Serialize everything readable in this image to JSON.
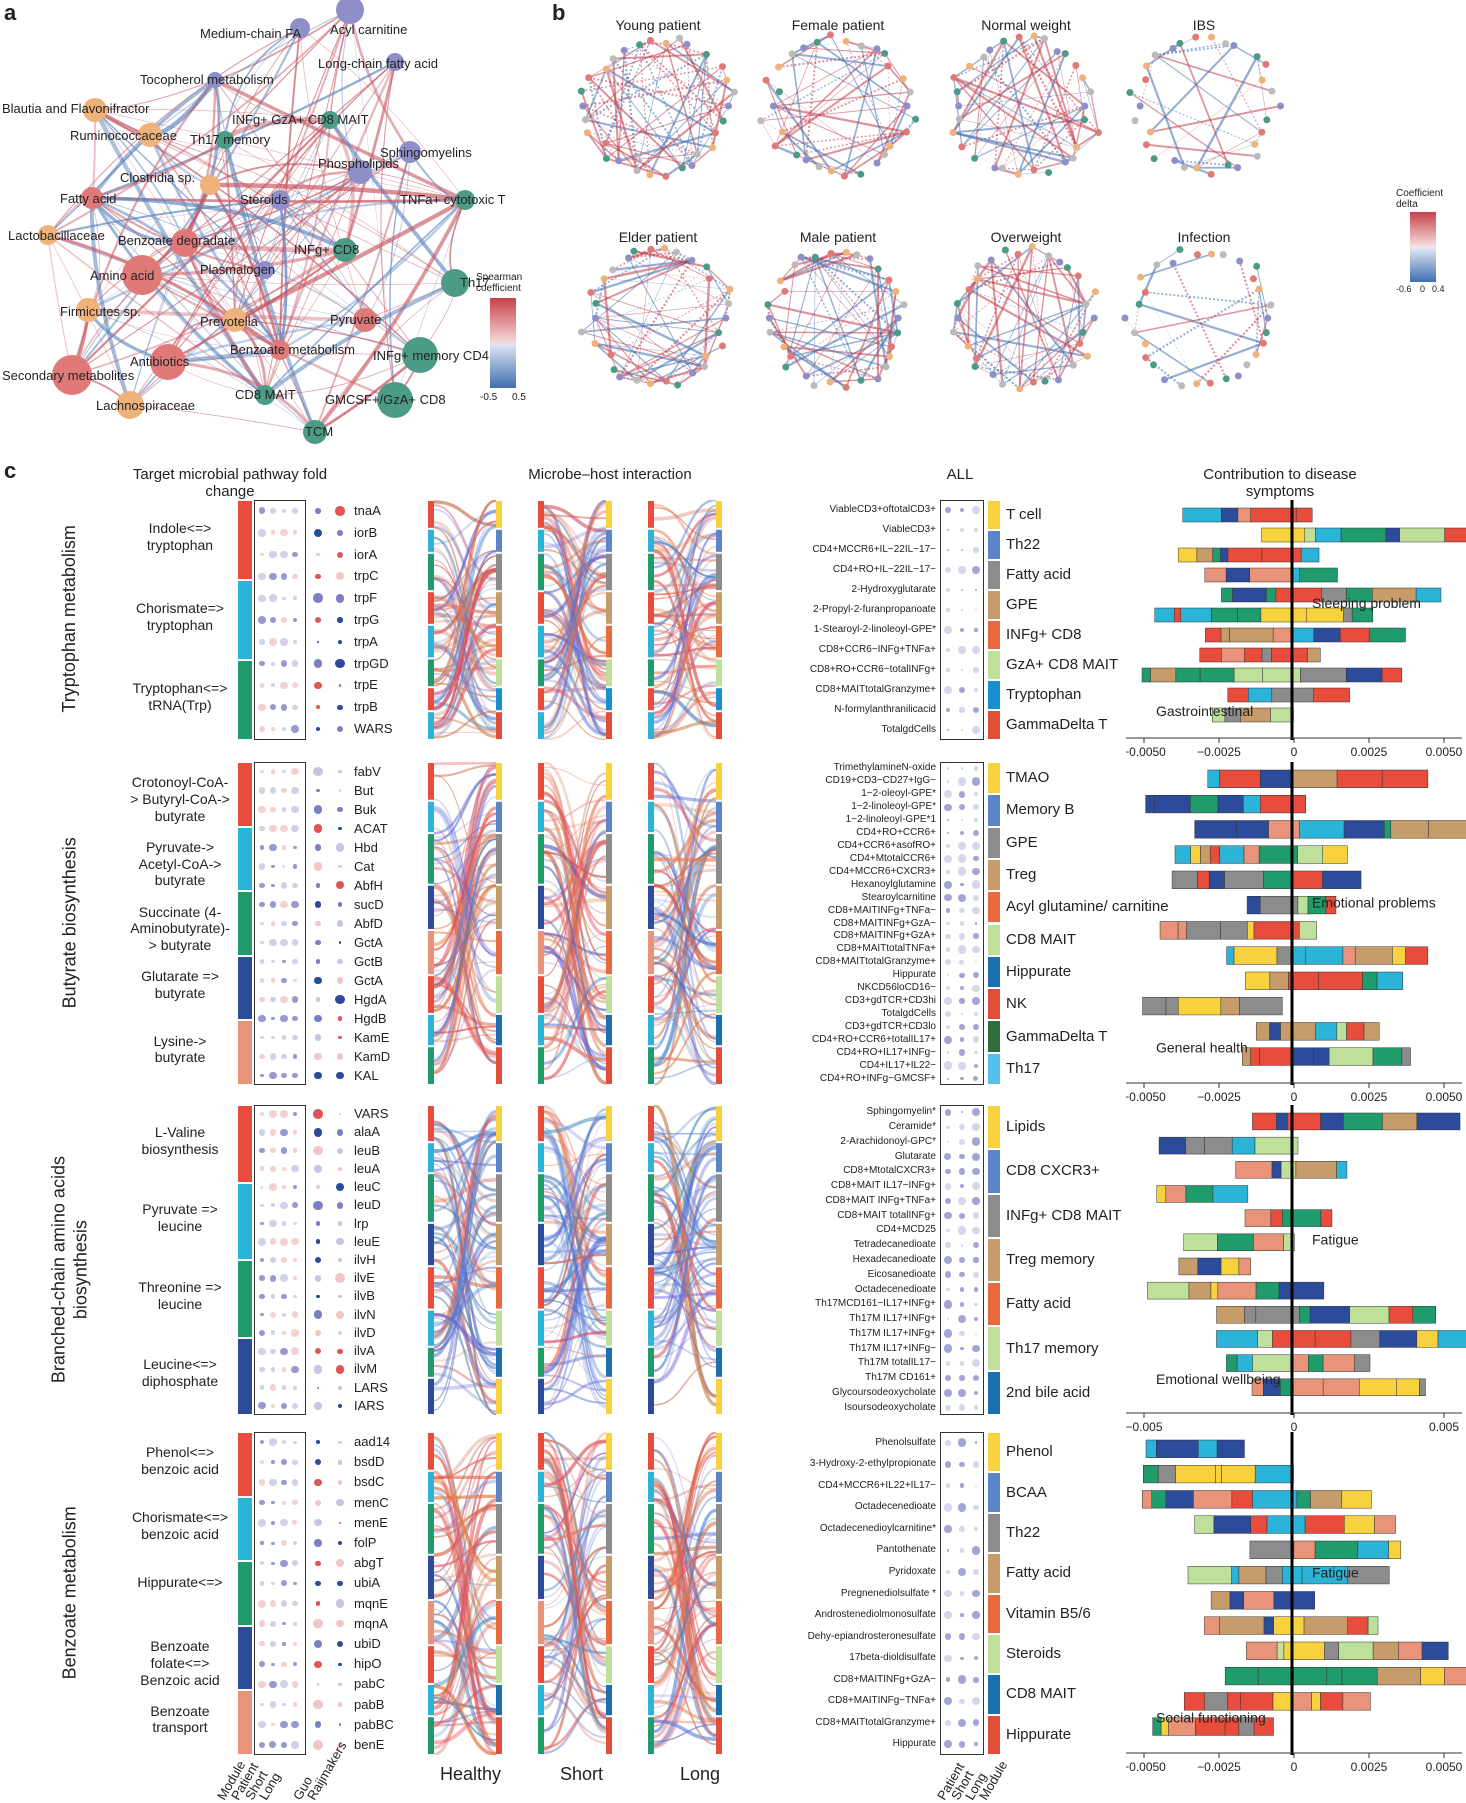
{
  "panel_a": {
    "letter": "a",
    "nodes": [
      {
        "label": "Acyl carnitine",
        "color": "#8e8fc8"
      },
      {
        "label": "Medium-chain FA",
        "color": "#8e8fc8"
      },
      {
        "label": "Long-chain fatty acid",
        "color": "#8e8fc8"
      },
      {
        "label": "Tocopherol metabolism",
        "color": "#8e8fc8"
      },
      {
        "label": "Blautia and Flavonifractor",
        "color": "#eeb27a"
      },
      {
        "label": "Ruminococcaceae",
        "color": "#eeb27a"
      },
      {
        "label": "Th17 memory",
        "color": "#4b9b87"
      },
      {
        "label": "INFg+ GzA+ CD8 MAIT",
        "color": "#4b9b87"
      },
      {
        "label": "Sphingomyelins",
        "color": "#8e8fc8"
      },
      {
        "label": "Phospholipids",
        "color": "#8e8fc8"
      },
      {
        "label": "Clostridia sp.",
        "color": "#eeb27a"
      },
      {
        "label": "Fatty acid",
        "color": "#e07a78"
      },
      {
        "label": "Steroids",
        "color": "#8e8fc8"
      },
      {
        "label": "TNFa+ cytotoxic T",
        "color": "#4b9b87"
      },
      {
        "label": "Lactobacillaceae",
        "color": "#eeb27a"
      },
      {
        "label": "Benzoate degradate",
        "color": "#e07a78"
      },
      {
        "label": "INFg+ CD8",
        "color": "#4b9b87"
      },
      {
        "label": "Amino acid",
        "color": "#e07a78"
      },
      {
        "label": "Plasmalogen",
        "color": "#8e8fc8"
      },
      {
        "label": "Th17",
        "color": "#4b9b87"
      },
      {
        "label": "Firmicutes sp.",
        "color": "#eeb27a"
      },
      {
        "label": "Prevotella",
        "color": "#eeb27a"
      },
      {
        "label": "Pyruvate",
        "color": "#e07a78"
      },
      {
        "label": "Benzoate metabolism",
        "color": "#e07a78"
      },
      {
        "label": "INFg+ memory CD4",
        "color": "#4b9b87"
      },
      {
        "label": "Antibiotics",
        "color": "#e07a78"
      },
      {
        "label": "Secondary metabolites",
        "color": "#e07a78"
      },
      {
        "label": "Lachnospiraceae",
        "color": "#eeb27a"
      },
      {
        "label": "CD8 MAIT",
        "color": "#4b9b87"
      },
      {
        "label": "GMCSF+/GzA+ CD8",
        "color": "#4b9b87"
      },
      {
        "label": "TCM",
        "color": "#4b9b87"
      }
    ],
    "legend_title": "Spearman coefficient",
    "legend_ticks": [
      "-0.5",
      "0.5"
    ]
  },
  "panel_b": {
    "letter": "b",
    "titles": [
      "Young patient",
      "Female patient",
      "Normal weight",
      "IBS",
      "Elder patient",
      "Male patient",
      "Overweight",
      "Infection"
    ],
    "legend_title": "Coefficient delta",
    "legend_ticks": [
      "-0.6",
      "0",
      "0.4"
    ]
  },
  "panel_c": {
    "letter": "c",
    "header_fold": "Target microbial pathway fold change",
    "header_interaction": "Microbe–host interaction",
    "header_all": "ALL",
    "header_contrib": "Contribution to disease symptoms",
    "sections": [
      {
        "title": "Tryptophan metabolism",
        "modules": [
          "Indole<=> tryptophan",
          "Chorismate=> tryptophan",
          "Tryptophan<=> tRNA(Trp)"
        ],
        "genes": [
          "tnaA",
          "iorB",
          "iorA",
          "trpC",
          "trpF",
          "trpG",
          "trpA",
          "trpGD",
          "trpE",
          "trpB",
          "WARS"
        ],
        "host": [
          "ViableCD3+oftotalCD3+",
          "ViableCD3+",
          "CD4+MCCR6+IL−22IL−17−",
          "CD4+RO+IL−22IL−17−",
          "2-Hydroxyglutarate",
          "2-Propyl-2-furanpropanoate",
          "1-Stearoyl-2-linoleoyl-GPE*",
          "CD8+CCR6−INFg+TNFa+",
          "CD8+RO+CCR6−totalINFg+",
          "CD8+MAITtotalGranzyme+",
          "N-formylanthranilicacid",
          "TotalgdCells"
        ],
        "categories": [
          {
            "label": "T cell",
            "color": "#f7d23e"
          },
          {
            "label": "Th22",
            "color": "#5b85c7"
          },
          {
            "label": "Fatty acid",
            "color": "#8c8c8c"
          },
          {
            "label": "GPE",
            "color": "#c79c6b"
          },
          {
            "label": "INFg+ CD8",
            "color": "#e86b3f"
          },
          {
            "label": "GzA+ CD8 MAIT",
            "color": "#bfe09a"
          },
          {
            "label": "Tryptophan",
            "color": "#1a8fd0"
          },
          {
            "label": "GammaDelta T",
            "color": "#e04e3b"
          }
        ],
        "symptoms": [
          "Sleeping problem",
          "Gastrointestinal"
        ],
        "axis": [
          "−0.0050",
          "−0.0025",
          "0",
          "0.0025",
          "0.0050"
        ]
      },
      {
        "title": "Butyrate biosynthesis",
        "modules": [
          "Crotonoyl-CoA-> Butyryl-CoA-> butyrate",
          "Pyruvate-> Acetyl-CoA-> butyrate",
          "Succinate (4-Aminobutyrate)-> butyrate",
          "Glutarate => butyrate",
          "Lysine-> butyrate"
        ],
        "genes": [
          "fabV",
          "But",
          "Buk",
          "ACAT",
          "Hbd",
          "Cat",
          "AbfH",
          "sucD",
          "AbfD",
          "GctA",
          "GctB",
          "GctA",
          "HgdA",
          "HgdB",
          "KamE",
          "KamD",
          "KAL"
        ],
        "host": [
          "TrimethylamineN-oxide",
          "CD19+CD3−CD27+IgG−",
          "1−2-oleoyl-GPE*",
          "1−2-linoleoyl-GPE*",
          "1−2-linoleoyl-GPE*1",
          "CD4+RO+CCR6+",
          "CD4+CCR6+asofRO+",
          "CD4+MtotalCCR6+",
          "CD4+MCCR6+CXCR3+",
          "Hexanoylglutamine",
          "Stearoylcarnitine",
          "CD8+MAITINFg+TNFa−",
          "CD8+MAITINFg+GzA−",
          "CD8+MAITINFg+GzA+",
          "CD8+MAITtotalTNFa+",
          "CD8+MAITtotalGranzyme+",
          "Hippurate",
          "NKCD56loCD16−",
          "CD3+gdTCR+CD3hi",
          "TotalgdCells",
          "CD3+gdTCR+CD3lo",
          "CD4+RO+CCR6+totalIL17+",
          "CD4+RO+IL17+INFg−",
          "CD4+IL17+IL22−",
          "CD4+RO+INFg−GMCSF+"
        ],
        "categories": [
          {
            "label": "TMAO",
            "color": "#f7d23e"
          },
          {
            "label": "Memory B",
            "color": "#5b85c7"
          },
          {
            "label": "GPE",
            "color": "#8c8c8c"
          },
          {
            "label": "Treg",
            "color": "#c79c6b"
          },
          {
            "label": "Acyl glutamine/ carnitine",
            "color": "#e86b3f"
          },
          {
            "label": "CD8 MAIT",
            "color": "#bfe09a"
          },
          {
            "label": "Hippurate",
            "color": "#1a6fb0"
          },
          {
            "label": "NK",
            "color": "#e04e3b"
          },
          {
            "label": "GammaDelta T",
            "color": "#2f6e3a"
          },
          {
            "label": "Th17",
            "color": "#56c0ec"
          }
        ],
        "symptoms": [
          "Emotional problems",
          "General health"
        ],
        "axis": [
          "−0.0050",
          "−0.0025",
          "0",
          "0.0025",
          "0.0050"
        ]
      },
      {
        "title": "Branched-chain amino acids biosynthesis",
        "modules": [
          "L-Valine biosynthesis",
          "Pyruvate => leucine",
          "Threonine => leucine",
          "Leucine<=> diphosphate"
        ],
        "genes": [
          "VARS",
          "alaA",
          "leuB",
          "leuA",
          "leuC",
          "leuD",
          "lrp",
          "leuE",
          "ilvH",
          "ilvE",
          "ilvB",
          "ilvN",
          "ilvD",
          "ilvA",
          "ilvM",
          "LARS",
          "IARS"
        ],
        "host": [
          "Sphingomyelin*",
          "Ceramide*",
          "2-Arachidonoyl-GPC*",
          "Glutarate",
          "CD8+MtotalCXCR3+",
          "CD8+MAIT IL17−INFg+",
          "CD8+MAIT INFg+TNFa+",
          "CD8+MAIT totalINFg+",
          "CD4+MCD25",
          "Tetradecanedioate",
          "Hexadecanedioate",
          "Eicosanedioate",
          "Octadecenedioate",
          "Th17MCD161−IL17+INFg+",
          "Th17M IL17+INFg+",
          "Th17M IL17+INFg+",
          "Th17M IL17+INFg−",
          "Th17M totalIL17−",
          "Th17M CD161+",
          "Glycoursodeoxycholate",
          "Isoursodeoxycholate"
        ],
        "categories": [
          {
            "label": "Lipids",
            "color": "#f7d23e"
          },
          {
            "label": "CD8 CXCR3+",
            "color": "#5b85c7"
          },
          {
            "label": "INFg+ CD8 MAIT",
            "color": "#8c8c8c"
          },
          {
            "label": "Treg memory",
            "color": "#c79c6b"
          },
          {
            "label": "Fatty acid",
            "color": "#e86b3f"
          },
          {
            "label": "Th17 memory",
            "color": "#bfe09a"
          },
          {
            "label": "2nd bile acid",
            "color": "#1a6fb0"
          }
        ],
        "symptoms": [
          "Fatigue",
          "Emotional wellbeing"
        ],
        "axis": [
          "−0.005",
          "0",
          "0.005"
        ]
      },
      {
        "title": "Benzoate metabolism",
        "modules": [
          "Phenol<=> benzoic acid",
          "Chorismate<=> benzoic acid",
          "Hippurate<=>",
          "Benzoate folate<=> Benzoic acid",
          "Benzoate transport"
        ],
        "genes": [
          "aad14",
          "bsdD",
          "bsdC",
          "menC",
          "menE",
          "folP",
          "abgT",
          "ubiA",
          "mqnE",
          "mqnA",
          "ubiD",
          "hipO",
          "pabC",
          "pabB",
          "pabBC",
          "benE"
        ],
        "host": [
          "Phenolsulfate",
          "3-Hydroxy-2-ethylpropionate",
          "CD4+MCCR6+IL22+IL17−",
          "Octadecenedioate",
          "Octadecenedioylcarnitine*",
          "Pantothenate",
          "Pyridoxate",
          "Pregnenediolsulfate *",
          "Androstenediolmonosulfate",
          "Dehy-epiandrosteronesulfate",
          "17beta-dioldisulfate",
          "CD8+MAITINFg+GzA−",
          "CD8+MAITINFg−TNFa+",
          "CD8+MAITtotalGranzyme+",
          "Hippurate"
        ],
        "categories": [
          {
            "label": "Phenol",
            "color": "#f7d23e"
          },
          {
            "label": "BCAA",
            "color": "#5b85c7"
          },
          {
            "label": "Th22",
            "color": "#8c8c8c"
          },
          {
            "label": "Fatty acid",
            "color": "#c79c6b"
          },
          {
            "label": "Vitamin B5/6",
            "color": "#e86b3f"
          },
          {
            "label": "Steroids",
            "color": "#bfe09a"
          },
          {
            "label": "CD8 MAIT",
            "color": "#1a6fb0"
          },
          {
            "label": "Hippurate",
            "color": "#e04e3b"
          }
        ],
        "symptoms": [
          "Fatigue",
          "Social functioning"
        ],
        "axis": [
          "−0.0050",
          "−0.0025",
          "0",
          "0.0025",
          "0.0050"
        ]
      }
    ],
    "bottom_fold_labels": [
      "Module",
      "Patient",
      "Short",
      "Long",
      "Guo",
      "Raijmakers"
    ],
    "bottom_flow_labels": [
      "Healthy",
      "Short",
      "Long"
    ],
    "bottom_all_labels": [
      "Patient",
      "Short",
      "Long",
      "Module"
    ]
  }
}
